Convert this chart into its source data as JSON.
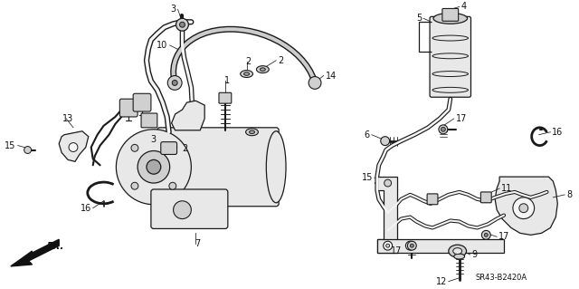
{
  "background_color": "#ffffff",
  "line_color": "#1a1a1a",
  "label_color": "#111111",
  "label_fontsize": 7.0,
  "diagram_code": "SR43-B2420A",
  "figsize": [
    6.4,
    3.19
  ],
  "dpi": 100,
  "lw": 0.9
}
